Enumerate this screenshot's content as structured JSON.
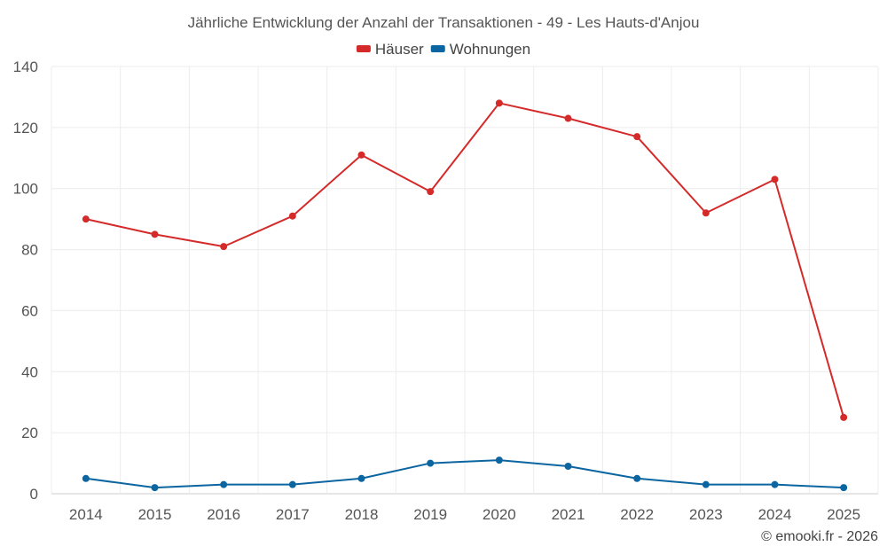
{
  "chart_data": {
    "type": "line",
    "title": "Jährliche Entwicklung der Anzahl der Transaktionen - 49 - Les Hauts-d'Anjou",
    "categories": [
      "2014",
      "2015",
      "2016",
      "2017",
      "2018",
      "2019",
      "2020",
      "2021",
      "2022",
      "2023",
      "2024",
      "2025"
    ],
    "series": [
      {
        "name": "Häuser",
        "color": "#d42a2a",
        "values": [
          90,
          85,
          81,
          91,
          111,
          99,
          128,
          123,
          117,
          92,
          103,
          25
        ]
      },
      {
        "name": "Wohnungen",
        "color": "#0b65a0",
        "values": [
          5,
          2,
          3,
          3,
          5,
          10,
          11,
          9,
          5,
          3,
          3,
          2
        ]
      }
    ],
    "ylim": [
      0,
      140
    ],
    "yticks": [
      0,
      20,
      40,
      60,
      80,
      100,
      120,
      140
    ],
    "xlabel": "",
    "ylabel": "",
    "grid": true,
    "legend_position": "top-center"
  },
  "credit": "© emooki.fr - 2026"
}
